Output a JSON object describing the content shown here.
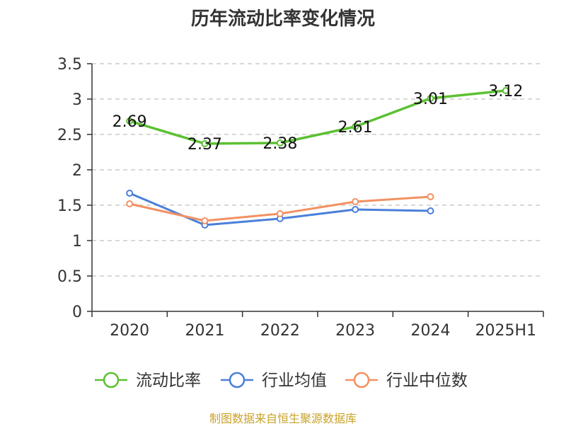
{
  "chart_data": {
    "type": "line",
    "title": "历年流动比率变化情况",
    "categories": [
      "2020",
      "2021",
      "2022",
      "2023",
      "2024",
      "2025H1"
    ],
    "ylim": [
      0,
      3.5
    ],
    "yticks": [
      0,
      0.5,
      1,
      1.5,
      2,
      2.5,
      3,
      3.5
    ],
    "ytick_labels": [
      "0",
      "0.5",
      "1",
      "1.5",
      "2",
      "2.5",
      "3",
      "3.5"
    ],
    "grid": true,
    "legend_position": "bottom",
    "series": [
      {
        "name": "流动比率",
        "color": "#5cc133",
        "values": [
          2.69,
          2.37,
          2.38,
          2.61,
          3.01,
          3.12
        ],
        "data_labels": [
          "2.69",
          "2.37",
          "2.38",
          "2.61",
          "3.01",
          "3.12"
        ]
      },
      {
        "name": "行业均值",
        "color": "#4a7fd9",
        "values": [
          1.67,
          1.22,
          1.31,
          1.44,
          1.42,
          null
        ]
      },
      {
        "name": "行业中位数",
        "color": "#f39162",
        "values": [
          1.52,
          1.28,
          1.38,
          1.55,
          1.62,
          null
        ]
      }
    ]
  },
  "footer": {
    "source": "制图数据来自恒生聚源数据库"
  }
}
